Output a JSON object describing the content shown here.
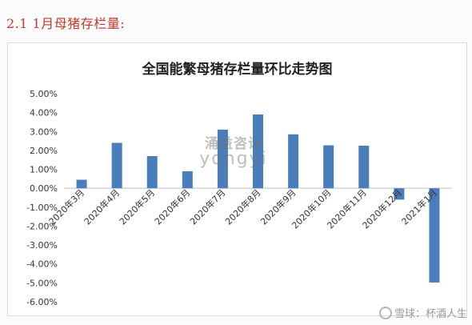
{
  "heading": "2.1 1月母猪存栏量:",
  "watermark": {
    "cn": "涌益咨询",
    "en": "yongyi"
  },
  "source": {
    "icon": "snowball-icon",
    "text": "雪球：杯酒人生"
  },
  "chart_data": {
    "type": "bar",
    "title": "全国能繁母猪存栏量环比走势图",
    "categories": [
      "2020年3月",
      "2020年4月",
      "2020年5月",
      "2020年6月",
      "2020年7月",
      "2020年8月",
      "2020年9月",
      "2020年10月",
      "2020年11月",
      "2020年12月",
      "2021年1月"
    ],
    "series": [
      {
        "values": [
          0.45,
          2.4,
          1.7,
          0.9,
          3.1,
          3.9,
          2.85,
          2.27,
          2.25,
          -0.6,
          -4.98
        ]
      }
    ],
    "ylim": [
      -6,
      5
    ],
    "yticks": [
      "5.00%",
      "4.00%",
      "3.00%",
      "2.00%",
      "1.00%",
      "0.00%",
      "-1.00%",
      "-2.00%",
      "-3.00%",
      "-4.00%",
      "-5.00%",
      "-6.00%"
    ],
    "bar_color": "#4a7ebb",
    "grid": false,
    "legend": "none"
  }
}
